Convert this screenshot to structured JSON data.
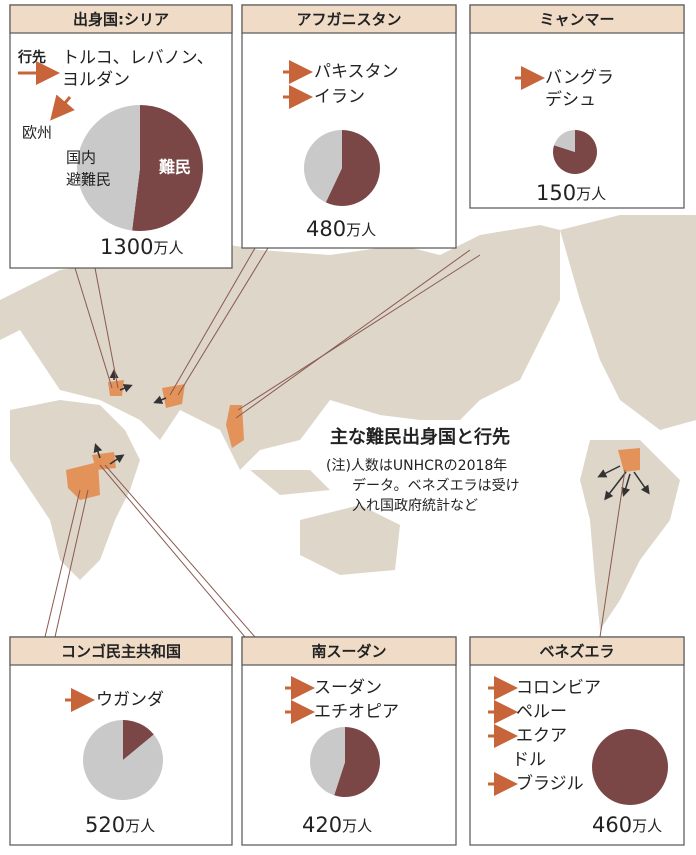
{
  "title": "主な難民出身国と行先",
  "note": [
    "(注)人数はUNHCRの2018年",
    "データ。ベネズエラは受け",
    "入れ国政府統計など"
  ],
  "pie_colors": {
    "refugees": "#7b4646",
    "idp": "#c9c9c9"
  },
  "panels": [
    {
      "header": "出身国:シリア",
      "destination_label": "行先",
      "destinations": [
        [
          "トルコ、レバノン、",
          "ヨルダン"
        ]
      ],
      "other_destination": "欧州",
      "pie": [
        52,
        48
      ],
      "slice_labels": [
        "難民",
        [
          "国内",
          "避難民"
        ]
      ],
      "total": 1300,
      "unit": "万人"
    },
    {
      "header": "アフガニスタン",
      "destinations": [
        [
          "パキスタン"
        ],
        [
          "イラン"
        ]
      ],
      "pie": [
        57,
        43
      ],
      "total": 480,
      "unit": "万人"
    },
    {
      "header": "ミャンマー",
      "destinations": [
        [
          "バングラ",
          "デシュ"
        ]
      ],
      "pie": [
        80,
        20
      ],
      "total": 150,
      "unit": "万人"
    },
    {
      "header": "コンゴ民主共和国",
      "destinations": [
        [
          "ウガンダ"
        ]
      ],
      "pie": [
        14,
        86
      ],
      "total": 520,
      "unit": "万人"
    },
    {
      "header": "南スーダン",
      "destinations": [
        [
          "スーダン"
        ],
        [
          "エチオピア"
        ]
      ],
      "pie": [
        55,
        45
      ],
      "total": 420,
      "unit": "万人"
    },
    {
      "header": "ベネズエラ",
      "destinations": [
        [
          "コロンビア"
        ],
        [
          "ペルー"
        ],
        [
          "エクア",
          "ドル"
        ],
        [
          "ブラジル"
        ]
      ],
      "pie": [
        100,
        0
      ],
      "total": 460,
      "unit": "万人"
    }
  ]
}
